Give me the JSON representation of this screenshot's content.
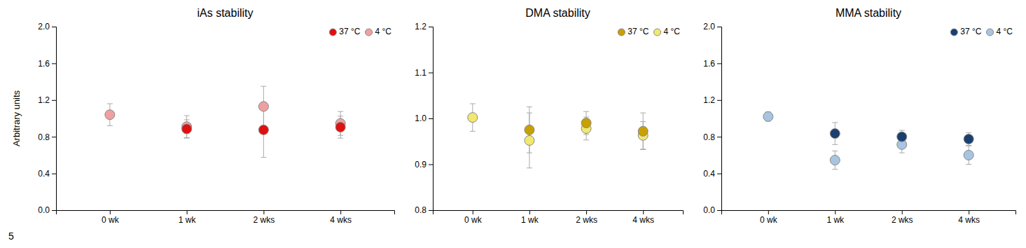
{
  "chart_data": [
    {
      "type": "scatter",
      "title": "iAs stability",
      "ylabel": "Arbitrary units",
      "categories": [
        "0 wk",
        "1 wk",
        "2 wks",
        "4 wks"
      ],
      "ylim": [
        0.0,
        2.0
      ],
      "yticks": [
        {
          "value": 0.0,
          "label": "0.0"
        },
        0.4,
        0.8,
        1.2,
        1.6,
        {
          "value": 2.0,
          "label": "2.0"
        }
      ],
      "grid": false,
      "legend": "upper right",
      "marker": "circle",
      "annotations": [
        "5"
      ],
      "series": [
        {
          "name": "37 °C",
          "color": "#e01010",
          "values": [
            null,
            0.885,
            0.875,
            0.905
          ],
          "errors": [
            null,
            0.1,
            0.3,
            0.12
          ]
        },
        {
          "name": "4 °C",
          "color": "#f0a0a0",
          "values": [
            1.04,
            0.91,
            1.13,
            0.945
          ],
          "errors": [
            0.12,
            0.12,
            0.22,
            0.13
          ]
        }
      ]
    },
    {
      "type": "scatter",
      "title": "DMA stability",
      "categories": [
        "0 wk",
        "1 wk",
        "2 wks",
        "4 wks"
      ],
      "ylim": [
        0.8,
        1.2
      ],
      "yticks": [
        0.8,
        0.9,
        {
          "value": 1.0,
          "label": "1.0"
        },
        1.1,
        1.2
      ],
      "grid": false,
      "legend": "upper right",
      "marker": "circle",
      "series": [
        {
          "name": "37 °C",
          "color": "#c8a000",
          "values": [
            null,
            0.975,
            0.99,
            0.972
          ],
          "errors": [
            null,
            0.05,
            0.025,
            0.04
          ]
        },
        {
          "name": "4 °C",
          "color": "#f0e870",
          "values": [
            1.002,
            0.952,
            0.978,
            0.963
          ],
          "errors": [
            0.03,
            0.06,
            0.025,
            0.03
          ]
        }
      ]
    },
    {
      "type": "scatter",
      "title": "MMA stability",
      "categories": [
        "0 wk",
        "1 wk",
        "2 wks",
        "4 wks"
      ],
      "ylim": [
        0.0,
        2.0
      ],
      "yticks": [
        {
          "value": 0.0,
          "label": "0.0"
        },
        0.4,
        0.8,
        1.2,
        1.6,
        {
          "value": 2.0,
          "label": "2.0"
        }
      ],
      "grid": false,
      "legend": "upper right",
      "marker": "circle",
      "series": [
        {
          "name": "37 °C",
          "color": "#1a3f6f",
          "values": [
            null,
            0.835,
            0.8,
            0.775
          ],
          "errors": [
            null,
            0.12,
            0.07,
            0.07
          ]
        },
        {
          "name": "4 °C",
          "color": "#a8c4e0",
          "values": [
            1.02,
            0.545,
            0.715,
            0.6
          ],
          "errors": [
            0.05,
            0.1,
            0.09,
            0.1
          ]
        }
      ]
    }
  ]
}
